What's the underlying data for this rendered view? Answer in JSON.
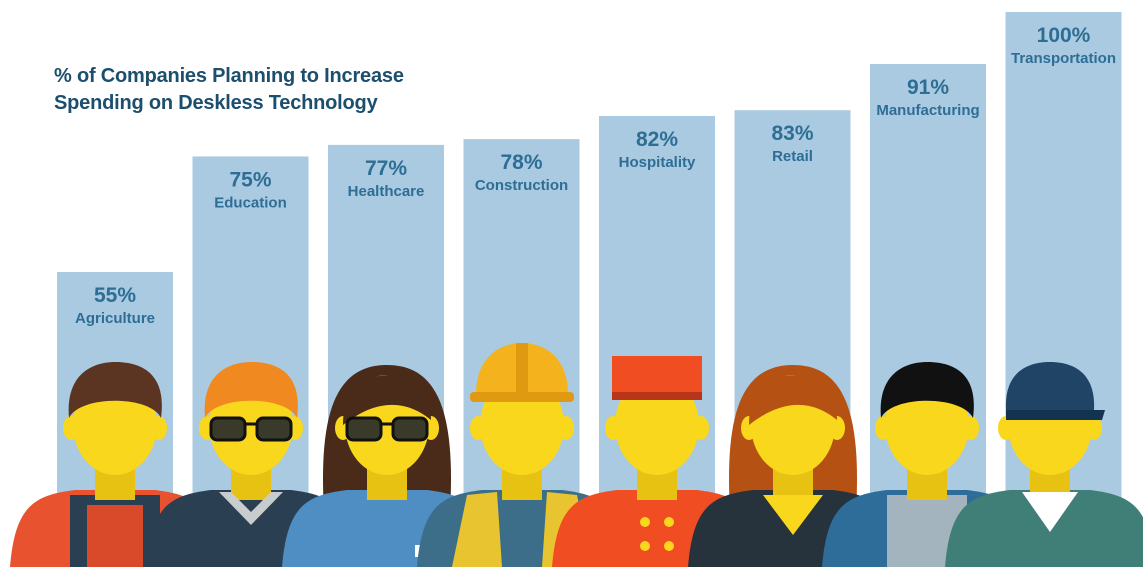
{
  "chart_data": {
    "type": "bar",
    "title_lines": [
      "% of Companies Planning to Increase",
      "Spending on Deskless Technology"
    ],
    "categories": [
      "Agriculture",
      "Education",
      "Healthcare",
      "Construction",
      "Hospitality",
      "Retail",
      "Manufacturing",
      "Transportation"
    ],
    "values": [
      55,
      75,
      77,
      78,
      82,
      83,
      91,
      100
    ],
    "value_labels": [
      "55%",
      "75%",
      "77%",
      "78%",
      "82%",
      "83%",
      "91%",
      "100%"
    ],
    "ylim": [
      0,
      100
    ],
    "grid": false,
    "legend": "none",
    "bar_color": "#a9cae0",
    "label_color": "#2e6e95",
    "title_color": "#1c4e6e",
    "worker_figures": [
      "farmer-icon",
      "teacher-with-glasses-icon",
      "nurse-with-glasses-icon",
      "construction-worker-hardhat-icon",
      "bellhop-hat-icon",
      "retail-worker-icon",
      "factory-worker-icon",
      "driver-cap-icon"
    ]
  }
}
